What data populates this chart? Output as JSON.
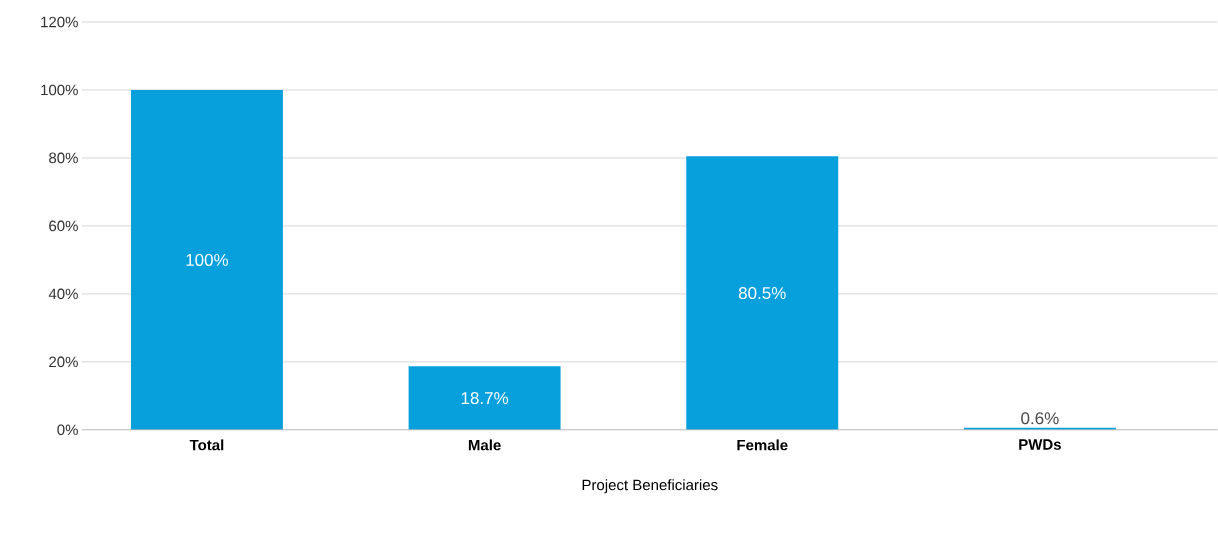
{
  "chart_data": {
    "type": "bar",
    "xlabel": "Project Beneficiaries",
    "categories": [
      "Total",
      "Male",
      "Female",
      "PWDs"
    ],
    "values": [
      100,
      18.7,
      80.5,
      0.6
    ],
    "value_labels": [
      "100%",
      "18.7%",
      "80.5%",
      "0.6%"
    ],
    "color": "#079fdc",
    "ylim": [
      0,
      120
    ],
    "yticks": [
      {
        "value": 0,
        "label": "0%"
      },
      {
        "value": 20,
        "label": "20%"
      },
      {
        "value": 40,
        "label": "40%"
      },
      {
        "value": 60,
        "label": "60%"
      },
      {
        "value": 80,
        "label": "80%"
      },
      {
        "value": 100,
        "label": "100%"
      },
      {
        "value": 120,
        "label": "120%"
      }
    ],
    "grid": "y"
  }
}
